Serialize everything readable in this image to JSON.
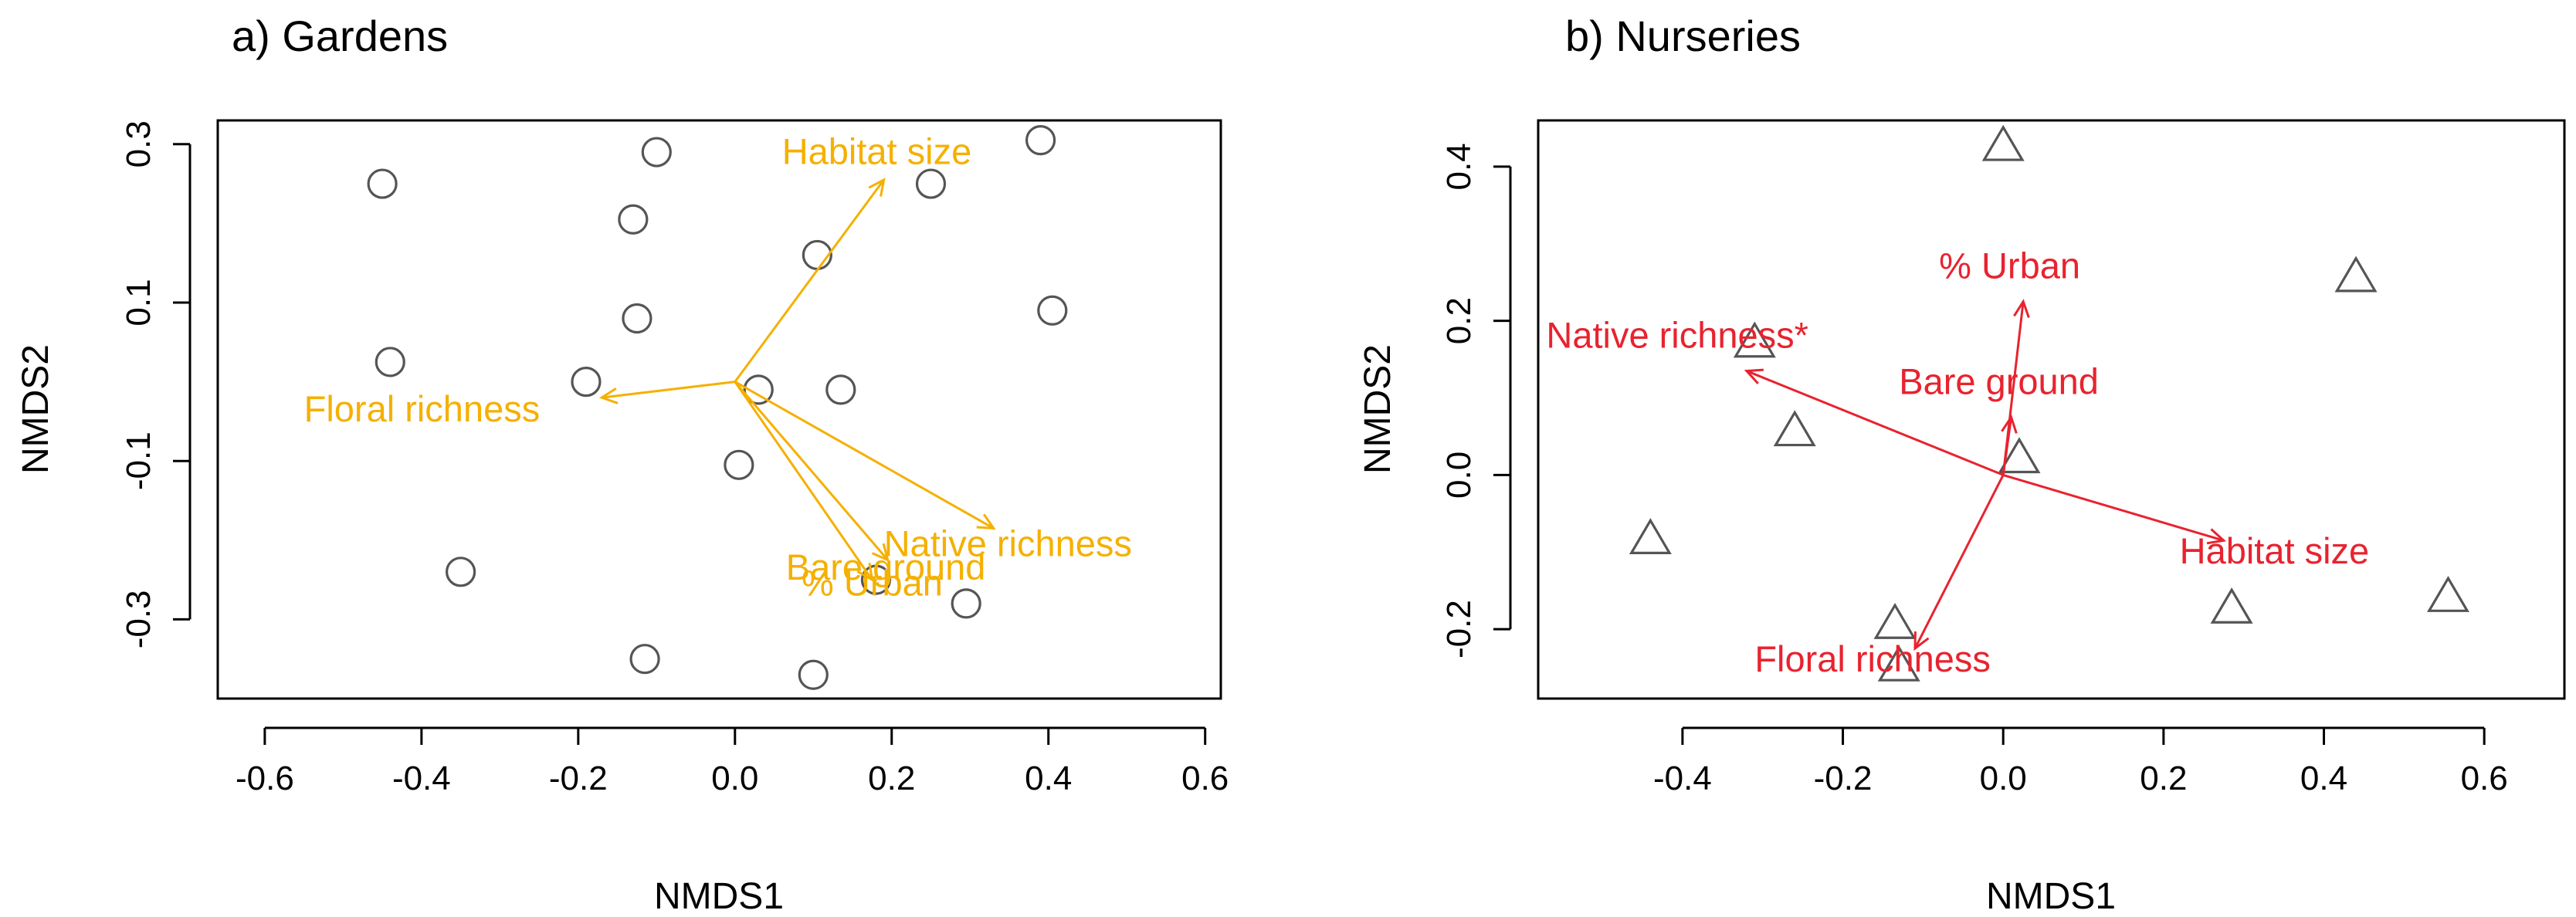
{
  "chart_data": [
    {
      "type": "scatter",
      "title": "a) Gardens",
      "xlabel": "NMDS1",
      "ylabel": "NMDS2",
      "xlim": [
        -0.66,
        0.62
      ],
      "ylim": [
        -0.4,
        0.33
      ],
      "xticks": [
        -0.6,
        -0.4,
        -0.2,
        0.0,
        0.2,
        0.4,
        0.6
      ],
      "xtick_labels": [
        "-0.6",
        "-0.4",
        "-0.2",
        "0.0",
        "0.2",
        "0.4",
        "0.6"
      ],
      "yticks": [
        -0.3,
        -0.1,
        0.1,
        0.3
      ],
      "ytick_labels": [
        "-0.3",
        "-0.1",
        "0.1",
        "0.3"
      ],
      "marker": "circle",
      "point_color": "#555555",
      "vector_color": "#F5B000",
      "points": [
        {
          "x": -0.45,
          "y": 0.25
        },
        {
          "x": -0.44,
          "y": 0.025
        },
        {
          "x": -0.35,
          "y": -0.24
        },
        {
          "x": -0.19,
          "y": 0.0
        },
        {
          "x": -0.13,
          "y": 0.205
        },
        {
          "x": -0.125,
          "y": 0.08
        },
        {
          "x": -0.115,
          "y": -0.35
        },
        {
          "x": -0.1,
          "y": 0.29
        },
        {
          "x": 0.005,
          "y": -0.105
        },
        {
          "x": 0.03,
          "y": -0.01
        },
        {
          "x": 0.1,
          "y": -0.37
        },
        {
          "x": 0.105,
          "y": 0.16
        },
        {
          "x": 0.135,
          "y": -0.01
        },
        {
          "x": 0.18,
          "y": -0.25
        },
        {
          "x": 0.25,
          "y": 0.25
        },
        {
          "x": 0.295,
          "y": -0.28
        },
        {
          "x": 0.39,
          "y": 0.305
        },
        {
          "x": 0.405,
          "y": 0.09
        }
      ],
      "vectors": [
        {
          "label": "Habitat size",
          "x": 0.19,
          "y": 0.255,
          "label_x": 0.06,
          "label_y": 0.275
        },
        {
          "label": "Floral richness",
          "x": -0.17,
          "y": -0.02,
          "label_x": -0.55,
          "label_y": -0.05
        },
        {
          "label": "Native richness",
          "x": 0.33,
          "y": -0.185,
          "label_x": 0.19,
          "label_y": -0.22
        },
        {
          "label": "Bare ground",
          "x": 0.195,
          "y": -0.225,
          "label_x": 0.065,
          "label_y": -0.25
        },
        {
          "label": "% Urban",
          "x": 0.175,
          "y": -0.25,
          "label_x": 0.085,
          "label_y": -0.27
        }
      ]
    },
    {
      "type": "scatter",
      "title": "b) Nurseries",
      "xlabel": "NMDS1",
      "ylabel": "NMDS2",
      "xlim": [
        -0.58,
        0.7
      ],
      "ylim": [
        -0.29,
        0.46
      ],
      "xticks": [
        -0.4,
        -0.2,
        0.0,
        0.2,
        0.4,
        0.6
      ],
      "xtick_labels": [
        "-0.4",
        "-0.2",
        "0.0",
        "0.2",
        "0.4",
        "0.6"
      ],
      "yticks": [
        -0.2,
        0.0,
        0.2,
        0.4
      ],
      "ytick_labels": [
        "-0.2",
        "0.0",
        "0.2",
        "0.4"
      ],
      "marker": "triangle",
      "point_color": "#555555",
      "vector_color": "#E8232F",
      "points": [
        {
          "x": -0.44,
          "y": -0.085
        },
        {
          "x": -0.31,
          "y": 0.17
        },
        {
          "x": -0.26,
          "y": 0.055
        },
        {
          "x": -0.135,
          "y": -0.195
        },
        {
          "x": -0.13,
          "y": -0.25
        },
        {
          "x": 0.0,
          "y": 0.425
        },
        {
          "x": 0.02,
          "y": 0.02
        },
        {
          "x": 0.285,
          "y": -0.175
        },
        {
          "x": 0.44,
          "y": 0.255
        },
        {
          "x": 0.555,
          "y": -0.16
        }
      ],
      "vectors": [
        {
          "label": "% Urban",
          "x": 0.025,
          "y": 0.225,
          "label_x": -0.08,
          "label_y": 0.255
        },
        {
          "label": "Native richness*",
          "x": -0.32,
          "y": 0.135,
          "label_x": -0.57,
          "label_y": 0.165
        },
        {
          "label": "Bare ground",
          "x": 0.01,
          "y": 0.075,
          "label_x": -0.13,
          "label_y": 0.105
        },
        {
          "label": "Habitat size",
          "x": 0.275,
          "y": -0.085,
          "label_x": 0.22,
          "label_y": -0.115
        },
        {
          "label": "Floral richness",
          "x": -0.11,
          "y": -0.225,
          "label_x": -0.31,
          "label_y": -0.255
        }
      ]
    }
  ]
}
